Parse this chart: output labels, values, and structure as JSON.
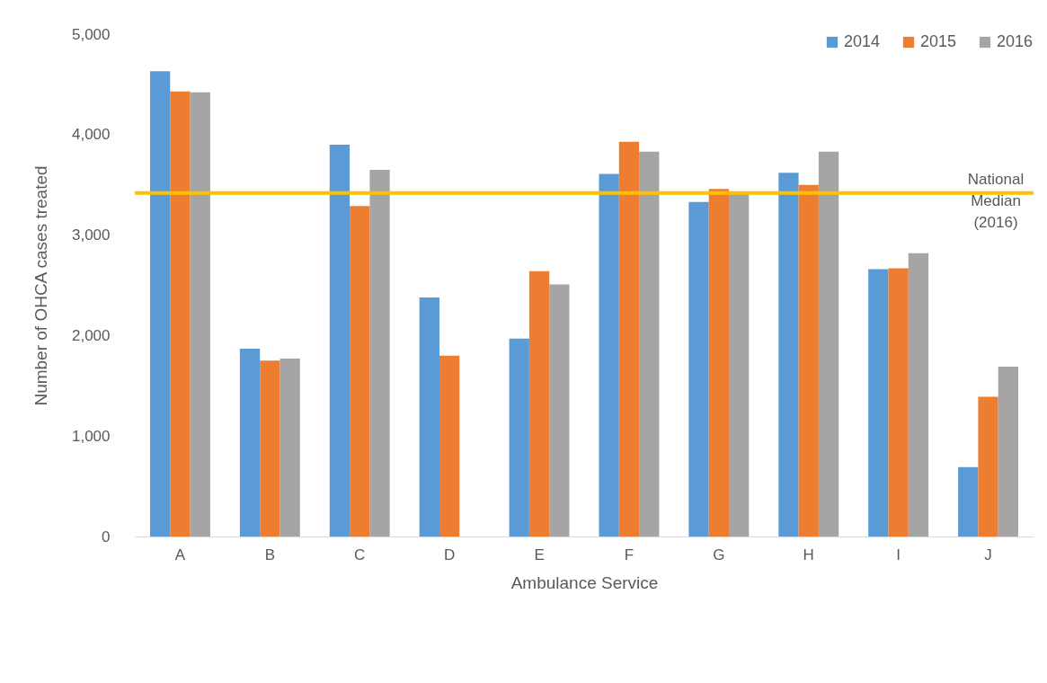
{
  "chart_data": {
    "type": "bar",
    "xlabel": "Ambulance Service",
    "ylabel": "Number of OHCA cases treated",
    "categories": [
      "A",
      "B",
      "C",
      "D",
      "E",
      "F",
      "G",
      "H",
      "I",
      "J"
    ],
    "series": [
      {
        "name": "2014",
        "color": "#5b9bd5",
        "values": [
          4630,
          1870,
          3900,
          2380,
          1970,
          3610,
          3330,
          3620,
          2660,
          690
        ]
      },
      {
        "name": "2015",
        "color": "#ed7d31",
        "values": [
          4430,
          1750,
          3290,
          1800,
          2640,
          3930,
          3460,
          3500,
          2670,
          1390
        ]
      },
      {
        "name": "2016",
        "color": "#a5a5a5",
        "values": [
          4420,
          1770,
          3650,
          null,
          2510,
          3830,
          3410,
          3830,
          2820,
          1690
        ]
      }
    ],
    "ylim": [
      0,
      5000
    ],
    "yticks": [
      {
        "value": 0,
        "label": "0"
      },
      {
        "value": 1000,
        "label": "1,000"
      },
      {
        "value": 2000,
        "label": "2,000"
      },
      {
        "value": 3000,
        "label": "3,000"
      },
      {
        "value": 4000,
        "label": "4,000"
      },
      {
        "value": 5000,
        "label": "5,000"
      }
    ],
    "ref_lines": [
      {
        "axis": "y",
        "value": 3420,
        "label": "National Median (2016)",
        "color": "#ffc000"
      }
    ],
    "grid": false,
    "legend": "top right"
  }
}
